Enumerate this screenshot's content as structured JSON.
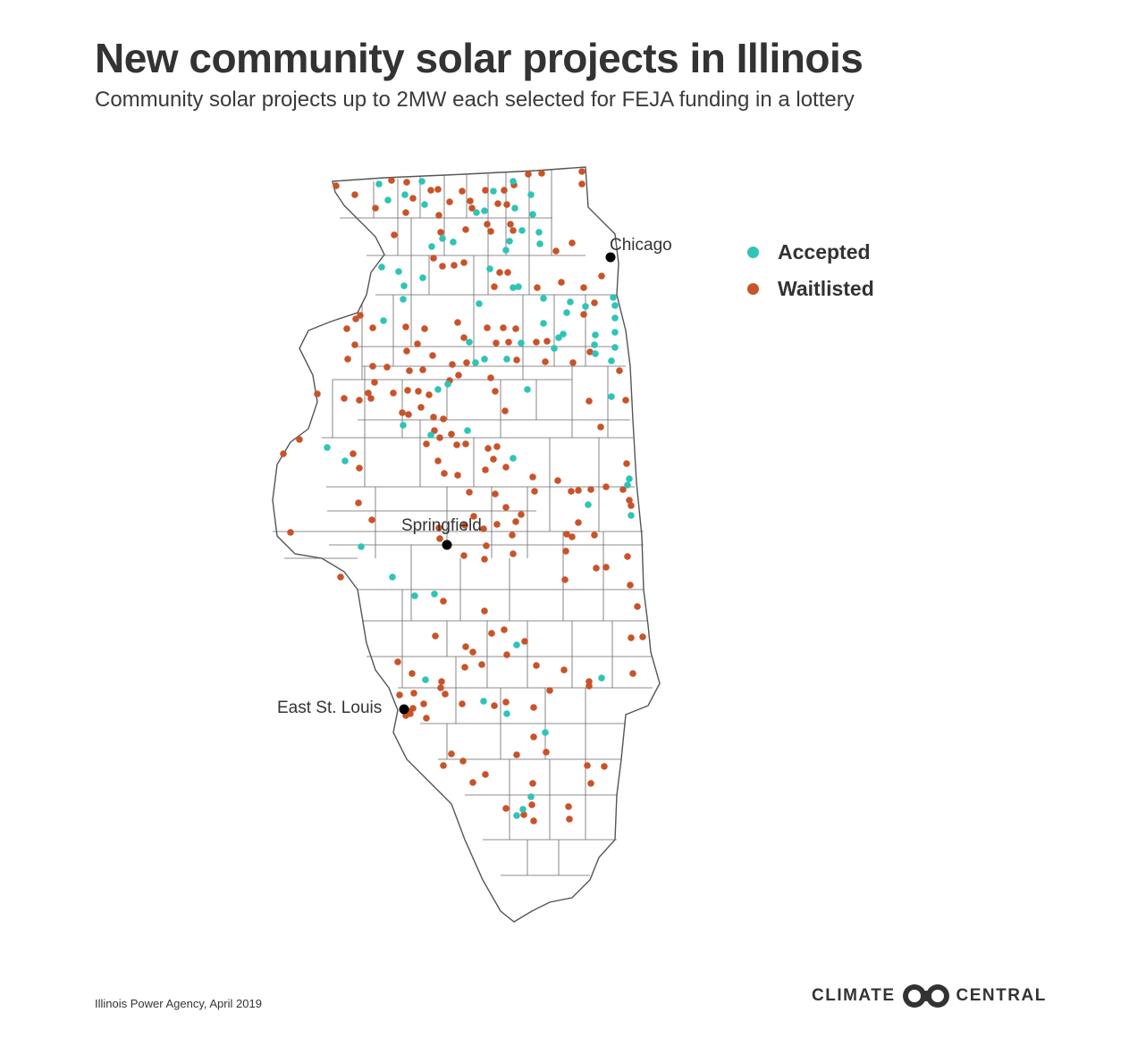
{
  "header": {
    "title": "New community solar projects in Illinois",
    "subtitle": "Community solar projects up to 2MW each selected for FEJA funding in a lottery"
  },
  "legend": {
    "accepted": {
      "label": "Accepted",
      "color": "#2ec4b6"
    },
    "waitlisted": {
      "label": "Waitlisted",
      "color": "#c95329"
    }
  },
  "cities": {
    "chicago": "Chicago",
    "springfield": "Springfield",
    "east_st_louis": "East St. Louis"
  },
  "map": {
    "outline_color": "#555555",
    "city_marker_color": "#000000",
    "icons": [
      "city-marker-icon",
      "project-dot-icon"
    ]
  },
  "footer": {
    "source": "Illinois Power Agency, April 2019",
    "brand_left": "CLIMATE",
    "brand_right": "CENTRAL",
    "brand_icon": "climate-central-logo-icon"
  }
}
